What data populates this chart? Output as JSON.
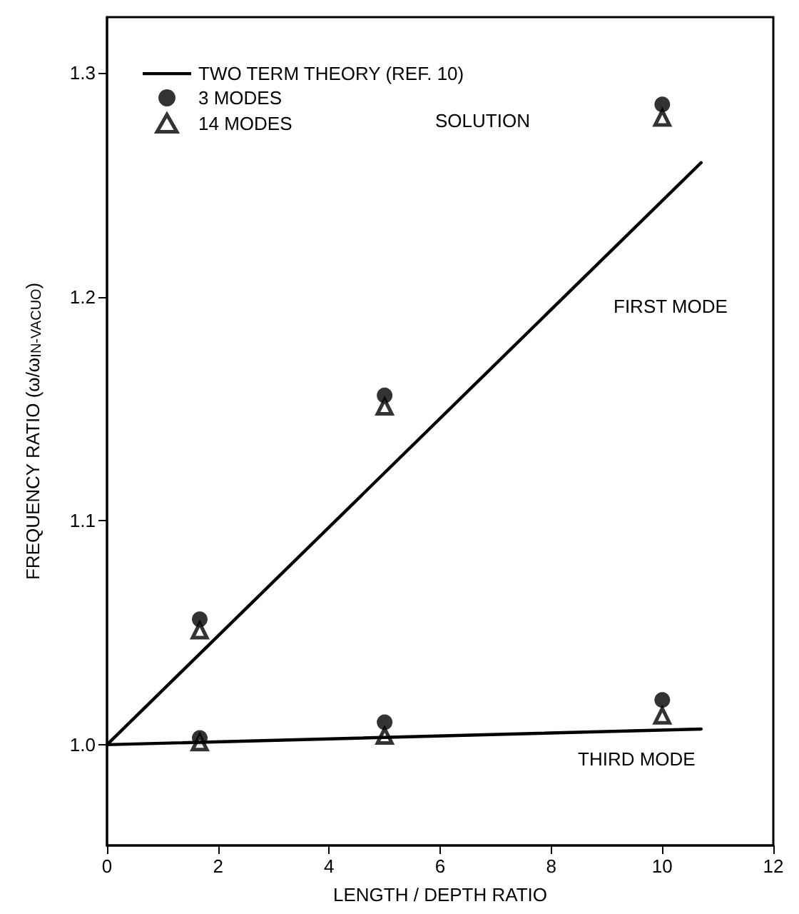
{
  "chart_data": {
    "type": "line",
    "xlabel": "LENGTH / DEPTH RATIO",
    "ylabel": "FREQUENCY RATIO (ω/ω$_{IN-VACUO}$)",
    "xlim": [
      0,
      12
    ],
    "xticks": [
      0,
      2,
      4,
      6,
      8,
      10,
      12
    ],
    "ylim": [
      0.955,
      1.325
    ],
    "yticks": [
      {
        "value": 1,
        "label": "1.0"
      },
      1.1,
      1.2,
      1.3
    ],
    "grid": false,
    "legend": "top left",
    "line_style": "solid",
    "series": [
      {
        "name": "TWO TERM THEORY (REF. 10)",
        "color": "#000000",
        "marker": "none",
        "x": [
          0,
          10.7
        ],
        "values": [
          1.0,
          1.26
        ]
      },
      {
        "color": "#000000",
        "marker": "none",
        "x": [
          0,
          10.7
        ],
        "values": [
          1.0,
          1.007
        ]
      },
      {
        "name": "3 MODES",
        "type": "scatter",
        "color": "#000000",
        "marker": "circle",
        "x": [
          1.67,
          5,
          10,
          1.67,
          5,
          10
        ],
        "values": [
          1.056,
          1.156,
          1.286,
          1.003,
          1.01,
          1.02
        ]
      },
      {
        "name": "14 MODES",
        "type": "scatter",
        "color": "#000000",
        "marker": "triangle",
        "x": [
          1.67,
          5,
          10,
          1.67,
          5,
          10
        ],
        "values": [
          1.051,
          1.151,
          1.28,
          1.001,
          1.004,
          1.013
        ]
      }
    ],
    "annotations": [
      "SOLUTION",
      "FIRST MODE",
      "THIRD MODE"
    ]
  }
}
